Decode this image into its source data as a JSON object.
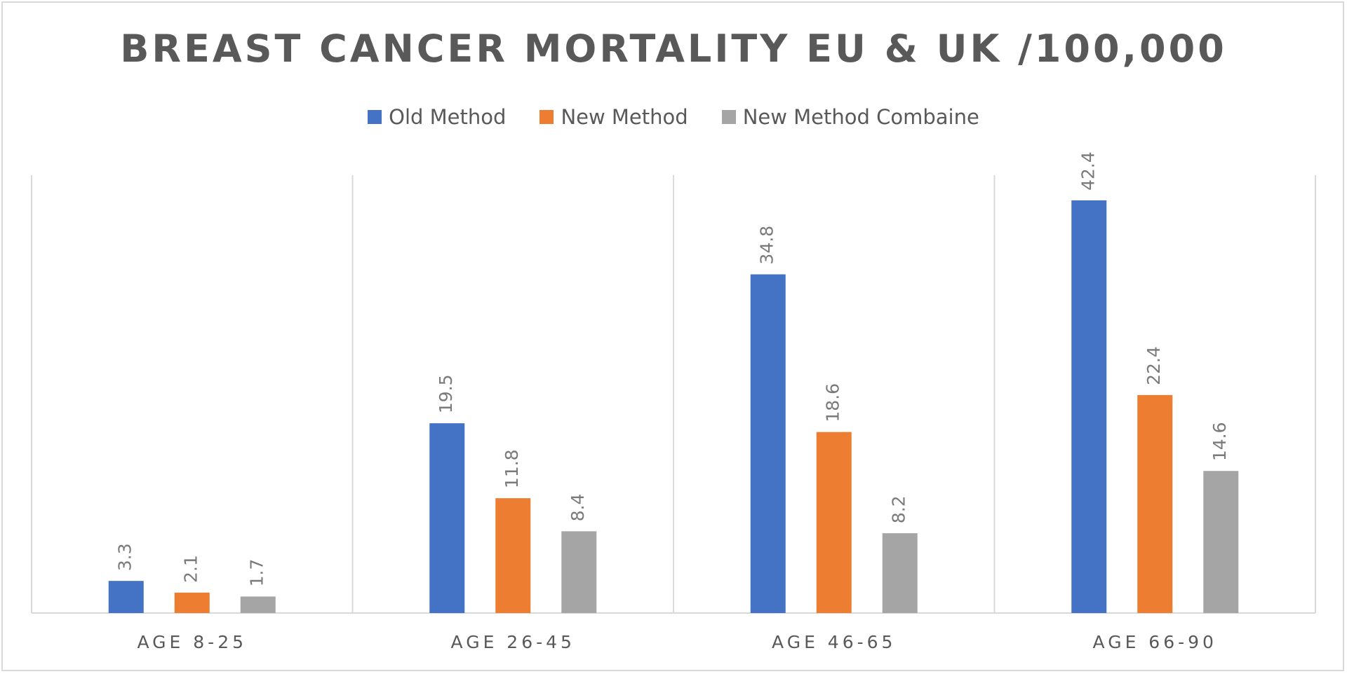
{
  "chart_data": {
    "type": "bar",
    "title": "BREAST CANCER MORTALITY EU & UK /100,000",
    "categories": [
      "AGE 8-25",
      "AGE 26-45",
      "AGE 46-65",
      "AGE 66-90"
    ],
    "series": [
      {
        "name": "Old Method",
        "color": "#4472c4",
        "values": [
          3.3,
          19.5,
          34.8,
          42.4
        ]
      },
      {
        "name": "New Method",
        "color": "#ed7d31",
        "values": [
          2.1,
          11.8,
          18.6,
          22.4
        ]
      },
      {
        "name": "New Method Combaine",
        "color": "#a5a5a5",
        "values": [
          1.7,
          8.4,
          8.2,
          14.6
        ]
      }
    ],
    "xlabel": "",
    "ylabel": "",
    "ylim": [
      0,
      45
    ],
    "grid": "vertical category separators",
    "legend_position": "top",
    "data_labels": "rotated, above bars"
  }
}
